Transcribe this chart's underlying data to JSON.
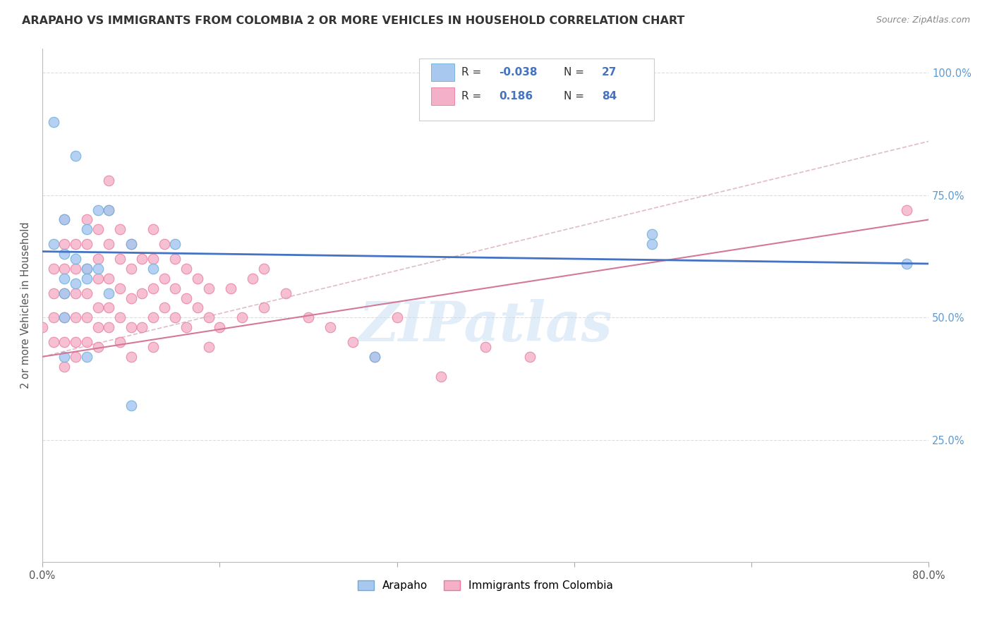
{
  "title": "ARAPAHO VS IMMIGRANTS FROM COLOMBIA 2 OR MORE VEHICLES IN HOUSEHOLD CORRELATION CHART",
  "source": "Source: ZipAtlas.com",
  "ylabel": "2 or more Vehicles in Household",
  "watermark": "ZIPatlas",
  "arapaho_scatter_color": "#a8c8f0",
  "arapaho_scatter_edge": "#6aaed6",
  "colombia_scatter_color": "#f4b0c8",
  "colombia_scatter_edge": "#e87a9a",
  "arapaho_line_color": "#4472c4",
  "colombia_line_color": "#d4789a",
  "dashed_line_color": "#d4a0b0",
  "right_tick_color": "#5b9bd5",
  "xlim": [
    0.0,
    0.8
  ],
  "ylim": [
    0.0,
    1.05
  ],
  "yticks": [
    0.0,
    0.25,
    0.5,
    0.75,
    1.0
  ],
  "ytick_labels_right": [
    "",
    "25.0%",
    "50.0%",
    "75.0%",
    "100.0%"
  ],
  "xtick_vals": [
    0.0,
    0.16,
    0.32,
    0.48,
    0.64,
    0.8
  ],
  "xtick_labels": [
    "0.0%",
    "",
    "",
    "",
    "",
    "80.0%"
  ],
  "legend_R1": "-0.038",
  "legend_N1": "27",
  "legend_R2": "0.186",
  "legend_N2": "84",
  "arapaho_x": [
    0.01,
    0.03,
    0.05,
    0.02,
    0.04,
    0.01,
    0.02,
    0.03,
    0.04,
    0.05,
    0.02,
    0.03,
    0.06,
    0.08,
    0.02,
    0.04,
    0.06,
    0.1,
    0.12,
    0.02,
    0.04,
    0.3,
    0.55,
    0.78,
    0.55,
    0.02,
    0.08
  ],
  "arapaho_y": [
    0.9,
    0.83,
    0.72,
    0.7,
    0.68,
    0.65,
    0.63,
    0.62,
    0.6,
    0.6,
    0.58,
    0.57,
    0.72,
    0.65,
    0.55,
    0.58,
    0.55,
    0.6,
    0.65,
    0.5,
    0.42,
    0.42,
    0.65,
    0.61,
    0.67,
    0.42,
    0.32
  ],
  "colombia_x": [
    0.0,
    0.01,
    0.01,
    0.01,
    0.01,
    0.02,
    0.02,
    0.02,
    0.02,
    0.02,
    0.02,
    0.02,
    0.03,
    0.03,
    0.03,
    0.03,
    0.03,
    0.03,
    0.04,
    0.04,
    0.04,
    0.04,
    0.04,
    0.04,
    0.05,
    0.05,
    0.05,
    0.05,
    0.05,
    0.05,
    0.06,
    0.06,
    0.06,
    0.06,
    0.06,
    0.06,
    0.07,
    0.07,
    0.07,
    0.07,
    0.07,
    0.08,
    0.08,
    0.08,
    0.08,
    0.08,
    0.09,
    0.09,
    0.09,
    0.1,
    0.1,
    0.1,
    0.1,
    0.1,
    0.11,
    0.11,
    0.11,
    0.12,
    0.12,
    0.12,
    0.13,
    0.13,
    0.13,
    0.14,
    0.14,
    0.15,
    0.15,
    0.15,
    0.16,
    0.17,
    0.18,
    0.19,
    0.2,
    0.2,
    0.22,
    0.24,
    0.26,
    0.28,
    0.3,
    0.32,
    0.36,
    0.4,
    0.44,
    0.78
  ],
  "colombia_y": [
    0.48,
    0.6,
    0.55,
    0.5,
    0.45,
    0.7,
    0.65,
    0.6,
    0.55,
    0.5,
    0.45,
    0.4,
    0.65,
    0.6,
    0.55,
    0.5,
    0.45,
    0.42,
    0.7,
    0.65,
    0.6,
    0.55,
    0.5,
    0.45,
    0.68,
    0.62,
    0.58,
    0.52,
    0.48,
    0.44,
    0.78,
    0.72,
    0.65,
    0.58,
    0.52,
    0.48,
    0.68,
    0.62,
    0.56,
    0.5,
    0.45,
    0.65,
    0.6,
    0.54,
    0.48,
    0.42,
    0.62,
    0.55,
    0.48,
    0.68,
    0.62,
    0.56,
    0.5,
    0.44,
    0.65,
    0.58,
    0.52,
    0.62,
    0.56,
    0.5,
    0.6,
    0.54,
    0.48,
    0.58,
    0.52,
    0.56,
    0.5,
    0.44,
    0.48,
    0.56,
    0.5,
    0.58,
    0.6,
    0.52,
    0.55,
    0.5,
    0.48,
    0.45,
    0.42,
    0.5,
    0.38,
    0.44,
    0.42,
    0.72
  ]
}
